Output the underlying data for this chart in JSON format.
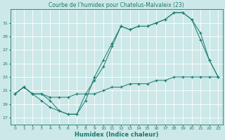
{
  "title": "Courbe de l'humidex pour Chatelus-Malvaleix (23)",
  "xlabel": "Humidex (Indice chaleur)",
  "bg_color": "#cce8e8",
  "line_color": "#1a7a6e",
  "grid_color": "#ffffff",
  "xlim": [
    -0.5,
    23.5
  ],
  "ylim": [
    16.0,
    33.0
  ],
  "xticks": [
    0,
    1,
    2,
    3,
    4,
    5,
    6,
    7,
    8,
    9,
    10,
    11,
    12,
    13,
    14,
    15,
    16,
    17,
    18,
    19,
    20,
    21,
    22,
    23
  ],
  "yticks": [
    17,
    19,
    21,
    23,
    25,
    27,
    29,
    31
  ],
  "line1_x": [
    0,
    1,
    2,
    3,
    4,
    5,
    6,
    7,
    8,
    9,
    10,
    11,
    12,
    13,
    14,
    15,
    16,
    17,
    18,
    19,
    20,
    21,
    22,
    23
  ],
  "line1_y": [
    20.5,
    21.5,
    20.5,
    20.5,
    19.5,
    18.0,
    17.5,
    17.5,
    20.5,
    22.5,
    24.5,
    27.5,
    30.5,
    30.0,
    30.5,
    30.5,
    31.0,
    31.5,
    32.5,
    32.5,
    31.5,
    28.5,
    25.5,
    23.0
  ],
  "line2_x": [
    0,
    1,
    2,
    3,
    4,
    5,
    6,
    7,
    8,
    9,
    10,
    11,
    12,
    13,
    14,
    15,
    16,
    17,
    18,
    19,
    20,
    21,
    22,
    23
  ],
  "line2_y": [
    20.5,
    21.5,
    20.5,
    19.5,
    18.5,
    18.0,
    17.5,
    17.5,
    19.5,
    23.0,
    25.5,
    28.0,
    30.5,
    30.0,
    30.5,
    30.5,
    31.0,
    31.5,
    32.5,
    32.5,
    31.5,
    29.5,
    25.5,
    23.0
  ],
  "line3_x": [
    0,
    1,
    2,
    3,
    4,
    5,
    6,
    7,
    8,
    9,
    10,
    11,
    12,
    13,
    14,
    15,
    16,
    17,
    18,
    19,
    20,
    21,
    22,
    23
  ],
  "line3_y": [
    20.5,
    21.5,
    20.5,
    20.5,
    20.0,
    20.0,
    20.0,
    20.5,
    20.5,
    20.5,
    21.0,
    21.5,
    21.5,
    22.0,
    22.0,
    22.0,
    22.5,
    22.5,
    23.0,
    23.0,
    23.0,
    23.0,
    23.0,
    23.0
  ],
  "title_fontsize": 5.5,
  "xlabel_fontsize": 6,
  "tick_fontsize": 4.5
}
